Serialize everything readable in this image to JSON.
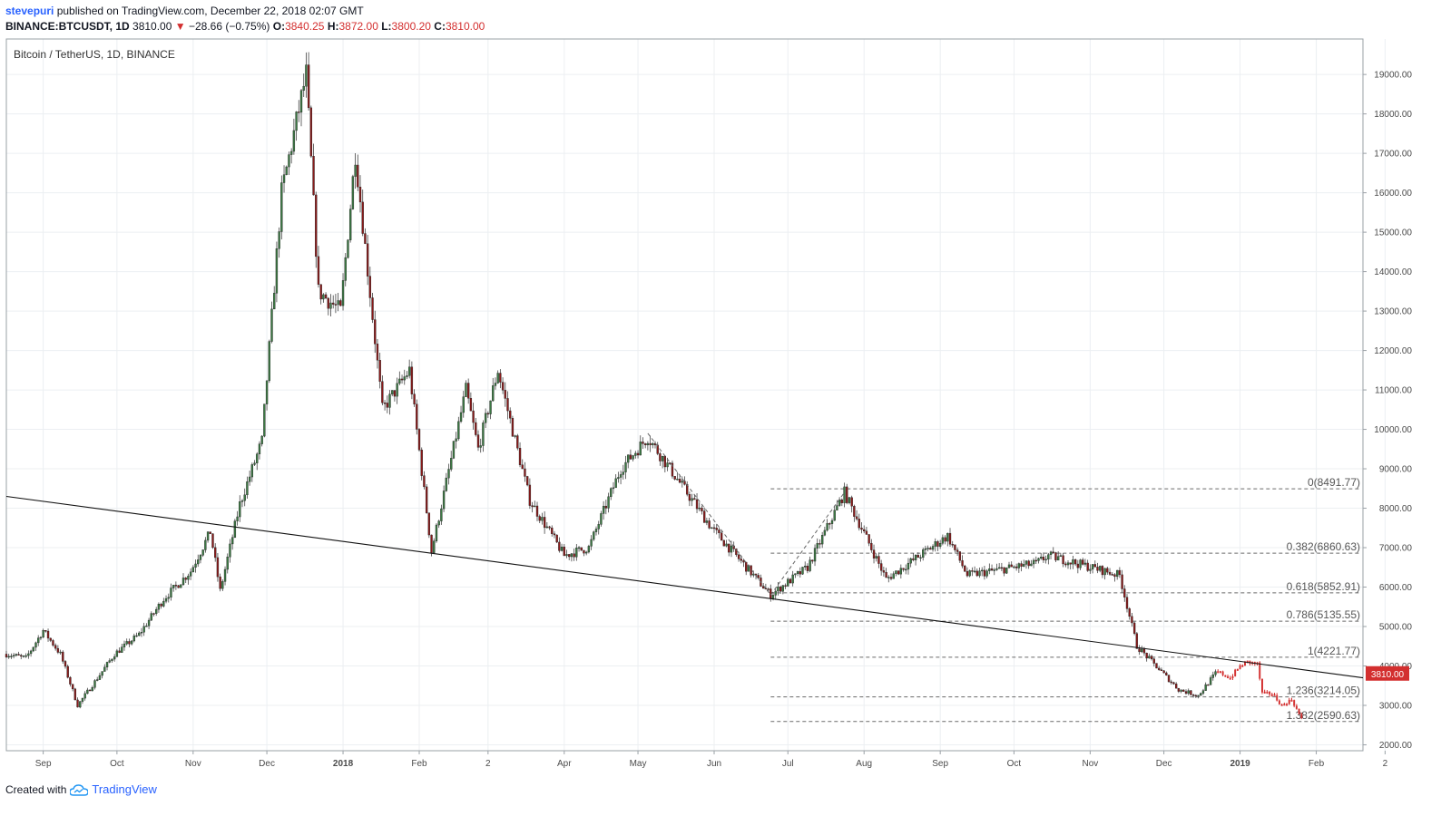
{
  "header": {
    "publisher": "stevepuri",
    "published_text": "published on TradingView.com, December 22, 2018 02:07 GMT",
    "symbol": "BINANCE:BTCUSDT, 1D",
    "last": "3810.00",
    "change_arrow": "▼",
    "change": "−28.66 (−0.75%)",
    "o_label": "O:",
    "o_value": "3840.25",
    "h_label": "H:",
    "h_value": "3872.00",
    "l_label": "L:",
    "l_value": "3800.20",
    "c_label": "C:",
    "c_value": "3810.00"
  },
  "footer": {
    "created_with": "Created with",
    "brand": "TradingView",
    "logo_icon": "tradingview-cloud-icon"
  },
  "colors": {
    "up": "#3c7a44",
    "down": "#8b1a1a",
    "projection": "#d32f2f",
    "grid": "#eceff2",
    "price_tag": "#d32f2f"
  },
  "chart_data": {
    "type": "candlestick",
    "title": "Bitcoin / TetherUS, 1D, BINANCE",
    "ylim": [
      1850,
      19900
    ],
    "y_ticks": [
      2000,
      3000,
      4000,
      5000,
      6000,
      7000,
      8000,
      9000,
      10000,
      11000,
      12000,
      13000,
      14000,
      15000,
      16000,
      17000,
      18000,
      19000
    ],
    "y_tick_labels": [
      "2000.00",
      "3000.00",
      "4000.00",
      "5000.00",
      "6000.00",
      "7000.00",
      "8000.00",
      "9000.00",
      "10000.00",
      "11000.00",
      "12000.00",
      "13000.00",
      "14000.00",
      "15000.00",
      "16000.00",
      "17000.00",
      "18000.00",
      "19000.00"
    ],
    "x_range": [
      "2017-08-17",
      "2019-02-20"
    ],
    "x_ticks": [
      {
        "label": "Sep",
        "date": "2017-09-01",
        "bold": false
      },
      {
        "label": "Oct",
        "date": "2017-10-01",
        "bold": false
      },
      {
        "label": "Nov",
        "date": "2017-11-01",
        "bold": false
      },
      {
        "label": "Dec",
        "date": "2017-12-01",
        "bold": false
      },
      {
        "label": "2018",
        "date": "2018-01-01",
        "bold": true
      },
      {
        "label": "Feb",
        "date": "2018-02-01",
        "bold": false
      },
      {
        "label": "2",
        "date": "2018-03-01",
        "bold": false
      },
      {
        "label": "Apr",
        "date": "2018-04-01",
        "bold": false
      },
      {
        "label": "May",
        "date": "2018-05-01",
        "bold": false
      },
      {
        "label": "Jun",
        "date": "2018-06-01",
        "bold": false
      },
      {
        "label": "Jul",
        "date": "2018-07-01",
        "bold": false
      },
      {
        "label": "Aug",
        "date": "2018-08-01",
        "bold": false
      },
      {
        "label": "Sep",
        "date": "2018-09-01",
        "bold": false
      },
      {
        "label": "Oct",
        "date": "2018-10-01",
        "bold": false
      },
      {
        "label": "Nov",
        "date": "2018-11-01",
        "bold": false
      },
      {
        "label": "Dec",
        "date": "2018-12-01",
        "bold": false
      },
      {
        "label": "2019",
        "date": "2019-01-01",
        "bold": true
      },
      {
        "label": "Feb",
        "date": "2019-02-01",
        "bold": false
      },
      {
        "label": "2",
        "date": "2019-03-01",
        "bold": false
      }
    ],
    "close_path": [
      [
        "2017-08-17",
        4300
      ],
      [
        "2017-08-25",
        4200
      ],
      [
        "2017-09-01",
        4900
      ],
      [
        "2017-09-08",
        4300
      ],
      [
        "2017-09-15",
        3000
      ],
      [
        "2017-09-22",
        3600
      ],
      [
        "2017-09-30",
        4300
      ],
      [
        "2017-10-10",
        4800
      ],
      [
        "2017-10-20",
        5700
      ],
      [
        "2017-10-31",
        6400
      ],
      [
        "2017-11-08",
        7400
      ],
      [
        "2017-11-12",
        5900
      ],
      [
        "2017-11-20",
        8100
      ],
      [
        "2017-11-29",
        9700
      ],
      [
        "2017-12-07",
        16000
      ],
      [
        "2017-12-17",
        19000
      ],
      [
        "2017-12-22",
        13500
      ],
      [
        "2017-12-31",
        13000
      ],
      [
        "2018-01-06",
        17000
      ],
      [
        "2018-01-17",
        10500
      ],
      [
        "2018-01-28",
        11500
      ],
      [
        "2018-02-06",
        6900
      ],
      [
        "2018-02-20",
        11000
      ],
      [
        "2018-02-25",
        9500
      ],
      [
        "2018-03-05",
        11500
      ],
      [
        "2018-03-18",
        8200
      ],
      [
        "2018-04-01",
        6800
      ],
      [
        "2018-04-11",
        7000
      ],
      [
        "2018-04-24",
        9000
      ],
      [
        "2018-05-05",
        9800
      ],
      [
        "2018-05-31",
        7500
      ],
      [
        "2018-06-24",
        5800
      ],
      [
        "2018-07-09",
        6500
      ],
      [
        "2018-07-24",
        8400
      ],
      [
        "2018-08-10",
        6200
      ],
      [
        "2018-09-04",
        7300
      ],
      [
        "2018-09-12",
        6300
      ],
      [
        "2018-10-10",
        6600
      ],
      [
        "2018-10-15",
        6800
      ],
      [
        "2018-11-13",
        6300
      ],
      [
        "2018-11-20",
        4500
      ],
      [
        "2018-12-07",
        3400
      ],
      [
        "2018-12-15",
        3250
      ],
      [
        "2018-12-22",
        3810
      ]
    ],
    "projection_path": [
      [
        "2018-12-23",
        3850
      ],
      [
        "2018-12-28",
        3700
      ],
      [
        "2019-01-01",
        4000
      ],
      [
        "2019-01-04",
        4100
      ],
      [
        "2019-01-08",
        4050
      ],
      [
        "2019-01-10",
        3300
      ],
      [
        "2019-01-14",
        3300
      ],
      [
        "2019-01-18",
        3000
      ],
      [
        "2019-01-22",
        3150
      ],
      [
        "2019-01-26",
        2650
      ]
    ],
    "trendline": [
      [
        "2017-08-17",
        8300
      ],
      [
        "2019-02-20",
        3700
      ]
    ],
    "zigzag": [
      [
        "2018-05-05",
        9900
      ],
      [
        "2018-06-24",
        5800
      ],
      [
        "2018-07-24",
        8400
      ]
    ],
    "fib_levels": [
      {
        "ratio": "0",
        "value": 8491.77,
        "label": "0(8491.77)"
      },
      {
        "ratio": "0.382",
        "value": 6860.63,
        "label": "0.382(6860.63)"
      },
      {
        "ratio": "0.618",
        "value": 5852.91,
        "label": "0.618(5852.91)"
      },
      {
        "ratio": "0.786",
        "value": 5135.55,
        "label": "0.786(5135.55)"
      },
      {
        "ratio": "1",
        "value": 4221.77,
        "label": "1(4221.77)"
      },
      {
        "ratio": "1.236",
        "value": 3214.05,
        "label": "1.236(3214.05)"
      },
      {
        "ratio": "1.382",
        "value": 2590.63,
        "label": "1.382(2590.63)"
      }
    ],
    "fib_start_date": "2018-06-24",
    "last_price": 3810,
    "last_price_label": "3810.00"
  }
}
